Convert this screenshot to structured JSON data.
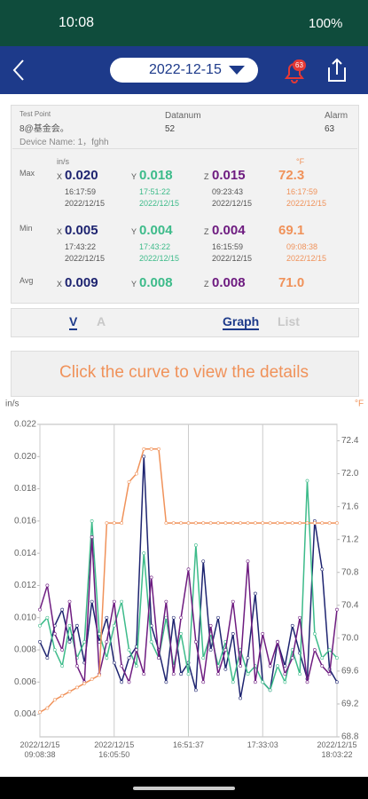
{
  "status_bar": {
    "time": "10:08",
    "battery": "100%"
  },
  "header": {
    "date": "2022-12-15",
    "badge": "63"
  },
  "info": {
    "test_point_label": "Test Point",
    "test_point": "8@基金会。",
    "device_name": "Device Name: 1，fghh",
    "datanum_label": "Datanum",
    "datanum": "52",
    "alarm_label": "Alarm",
    "alarm": "63"
  },
  "stats": {
    "unit": "in/s",
    "temp_unit": "°F",
    "rows": [
      {
        "label": "Max",
        "cells": [
          {
            "prefix": "X",
            "value": "0.020",
            "time": "16:17:59",
            "date": "2022/12/15"
          },
          {
            "prefix": "Y",
            "value": "0.018",
            "time": "17:51:22",
            "date": "2022/12/15"
          },
          {
            "prefix": "Z",
            "value": "0.015",
            "time": "09:23:43",
            "date": "2022/12/15"
          },
          {
            "value": "72.3",
            "time": "16:17:59",
            "date": "2022/12/15"
          }
        ]
      },
      {
        "label": "Min",
        "cells": [
          {
            "prefix": "X",
            "value": "0.005",
            "time": "17:43:22",
            "date": "2022/12/15"
          },
          {
            "prefix": "Y",
            "value": "0.004",
            "time": "17:43:22",
            "date": "2022/12/15"
          },
          {
            "prefix": "Z",
            "value": "0.004",
            "time": "16:15:59",
            "date": "2022/12/15"
          },
          {
            "value": "69.1",
            "time": "09:08:38",
            "date": "2022/12/15"
          }
        ]
      },
      {
        "label": "Avg",
        "cells": [
          {
            "prefix": "X",
            "value": "0.009"
          },
          {
            "prefix": "Y",
            "value": "0.008"
          },
          {
            "prefix": "Z",
            "value": "0.008"
          },
          {
            "value": "71.0"
          }
        ]
      }
    ]
  },
  "tabs": [
    "V",
    "A",
    "Graph",
    "List"
  ],
  "banner": "Click the curve to view the details",
  "chart_data": {
    "type": "line",
    "y_label": "in/s",
    "y2_label": "°F",
    "grid": "x",
    "categories": [
      "2022/12/15\n09:08:38",
      null,
      null,
      null,
      null,
      null,
      null,
      null,
      null,
      null,
      "2022/12/15\n16:05:50",
      null,
      null,
      null,
      null,
      null,
      null,
      null,
      null,
      null,
      "16:51:37",
      null,
      null,
      null,
      null,
      null,
      null,
      null,
      null,
      null,
      "17:33:03",
      null,
      null,
      null,
      null,
      null,
      null,
      null,
      null,
      null,
      "2022/12/15\n18:03:22"
    ],
    "ylim": [
      0.0026,
      0.022
    ],
    "yticks": [
      0.004,
      0.006,
      0.008,
      {
        "value": 0.01,
        "label": "0.010"
      },
      0.012,
      0.014,
      0.016,
      0.018,
      {
        "value": 0.02,
        "label": "0.020"
      },
      0.022
    ],
    "y2lim": [
      68.8,
      72.6
    ],
    "y2ticks": [
      68.8,
      69.2,
      69.6,
      {
        "value": 70,
        "label": "70.0"
      },
      70.4,
      70.8,
      71.2,
      71.6,
      {
        "value": 72,
        "label": "72.0"
      },
      72.4
    ],
    "series": [
      {
        "color": "#1e2470",
        "values": [
          0.0085,
          0.0075,
          0.0095,
          0.0105,
          0.0085,
          0.0095,
          0.0072,
          0.011,
          0.0085,
          0.01,
          0.0072,
          0.006,
          0.0075,
          0.0082,
          0.02,
          0.0095,
          0.008,
          0.006,
          0.01,
          0.0065,
          0.0072,
          0.0055,
          0.0135,
          0.008,
          0.01,
          0.0068,
          0.009,
          0.005,
          0.0075,
          0.0115,
          0.006,
          0.0055,
          0.0085,
          0.007,
          0.0095,
          0.0078,
          0.0062,
          0.016,
          0.013,
          0.0068,
          0.006
        ]
      },
      {
        "color": "#3dbb8a",
        "values": [
          0.0095,
          0.01,
          0.008,
          0.007,
          0.0095,
          0.0075,
          0.0085,
          0.016,
          0.009,
          0.0075,
          0.0095,
          0.011,
          0.008,
          0.007,
          0.014,
          0.0085,
          0.0075,
          0.01,
          0.007,
          0.009,
          0.0065,
          0.0145,
          0.0075,
          0.009,
          0.007,
          0.0085,
          0.006,
          0.008,
          0.0065,
          0.007,
          0.006,
          0.0055,
          0.007,
          0.006,
          0.008,
          0.0065,
          0.0185,
          0.009,
          0.0075,
          0.008,
          0.0075
        ]
      },
      {
        "color": "#6e1c80",
        "values": [
          0.0105,
          0.012,
          0.009,
          0.008,
          0.011,
          0.007,
          0.006,
          0.015,
          0.0065,
          0.0085,
          0.011,
          0.007,
          0.006,
          0.008,
          0.0065,
          0.0125,
          0.0075,
          0.011,
          0.0065,
          0.01,
          0.013,
          0.0085,
          0.006,
          0.0095,
          0.0065,
          0.008,
          0.011,
          0.007,
          0.0135,
          0.006,
          0.009,
          0.007,
          0.0085,
          0.0065,
          0.0075,
          0.01,
          0.006,
          0.008,
          0.007,
          0.0065,
          0.0105
        ]
      },
      {
        "color": "#f0925a",
        "axis": "y2",
        "values": [
          69.1,
          69.15,
          69.25,
          69.3,
          69.35,
          69.4,
          69.45,
          69.5,
          69.55,
          71.4,
          71.4,
          71.4,
          71.9,
          72.0,
          72.3,
          72.3,
          72.3,
          71.4,
          71.4,
          71.4,
          71.4,
          71.4,
          71.4,
          71.4,
          71.4,
          71.4,
          71.4,
          71.4,
          71.4,
          71.4,
          71.4,
          71.4,
          71.4,
          71.4,
          71.4,
          71.4,
          71.4,
          71.4,
          71.4,
          71.4,
          71.4
        ]
      }
    ]
  }
}
